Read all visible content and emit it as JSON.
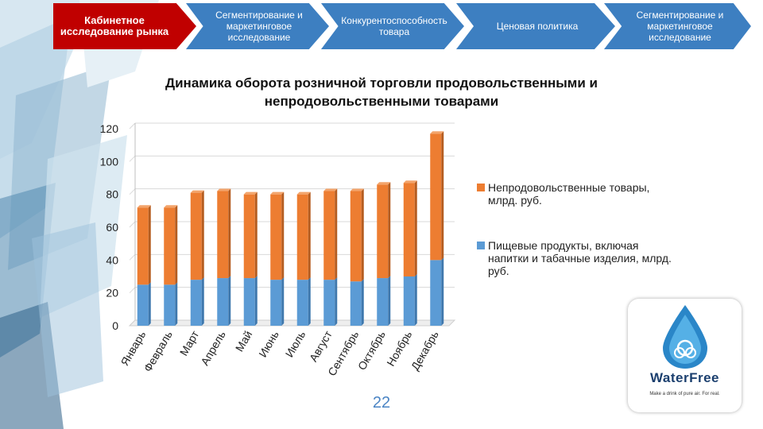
{
  "nav": {
    "tabs": [
      {
        "label": "Кабинетное исследование рынка",
        "active": true
      },
      {
        "label": "Сегментирование и маркетинговое исследование",
        "active": false
      },
      {
        "label": "Конкурентоспособность товара",
        "active": false
      },
      {
        "label": "Ценовая политика",
        "active": false
      },
      {
        "label": "Сегментирование и маркетинговое исследование",
        "active": false
      }
    ]
  },
  "colors": {
    "active_tab": "#c00000",
    "tab": "#3d7fc1",
    "food": "#5b9bd5",
    "nonfood": "#ed7d31"
  },
  "chart_data": {
    "type": "bar",
    "stacked": true,
    "title": "Динамика оборота розничной торговли продовольственными и непродовольственными товарами",
    "categories": [
      "Январь",
      "Февраль",
      "Март",
      "Апрель",
      "Май",
      "Июнь",
      "Июль",
      "Август",
      "Сентябрь",
      "Октябрь",
      "Ноябрь",
      "Декабрь"
    ],
    "series": [
      {
        "name": "Пищевые продукты, включая напитки и табачные изделия, млрд. руб.",
        "values": [
          25,
          25,
          28,
          29,
          29,
          28,
          28,
          28,
          27,
          29,
          30,
          40
        ]
      },
      {
        "name": "Непродовольственные товары, млрд. руб.",
        "values": [
          47,
          47,
          53,
          53,
          51,
          52,
          52,
          54,
          55,
          57,
          57,
          77
        ]
      }
    ],
    "ylim": [
      0,
      120
    ],
    "yticks": [
      0,
      20,
      40,
      60,
      80,
      100,
      120
    ],
    "legend": "right"
  },
  "page_number": "22",
  "logo": {
    "brand": "WaterFree",
    "tagline": "Make a drink of pure air. For real."
  }
}
